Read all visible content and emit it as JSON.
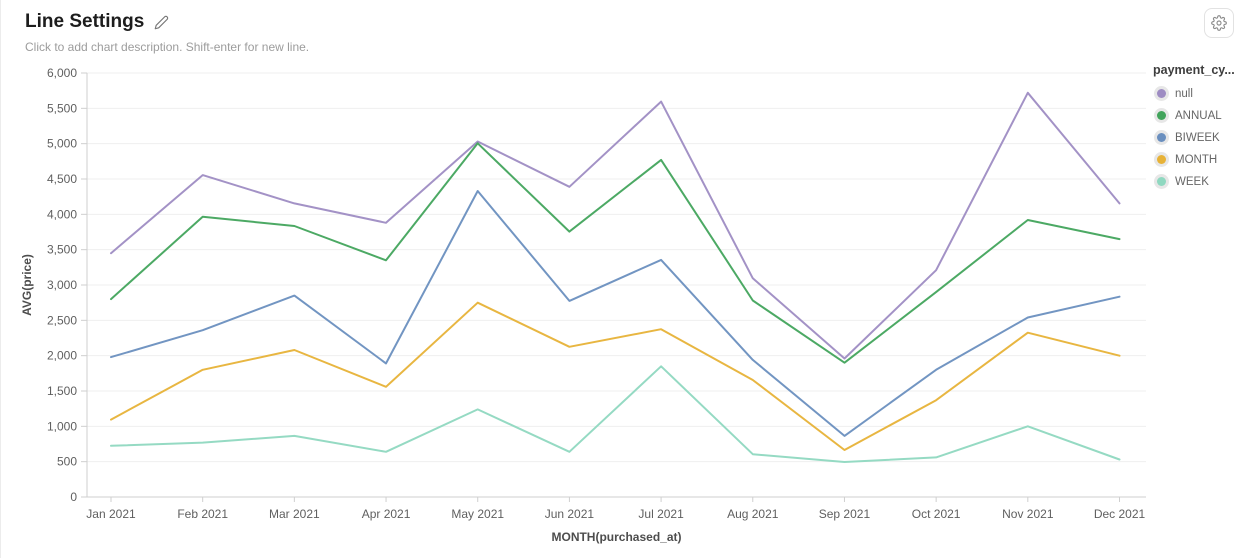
{
  "header": {
    "title": "Line Settings",
    "description_placeholder": "Click to add chart description. Shift-enter for new line."
  },
  "toolbar": {
    "settings_icon": "gear-icon"
  },
  "legend": {
    "title": "payment_cy...",
    "items": [
      {
        "label": "null",
        "color": "#9e8cc3"
      },
      {
        "label": "ANNUAL",
        "color": "#42a45c"
      },
      {
        "label": "BIWEEK",
        "color": "#6a8fbf"
      },
      {
        "label": "MONTH",
        "color": "#e7b237"
      },
      {
        "label": "WEEK",
        "color": "#8fd8c0"
      }
    ]
  },
  "chart_data": {
    "type": "line",
    "title": "",
    "xlabel": "MONTH(purchased_at)",
    "ylabel": "AVG(price)",
    "categories": [
      "Jan 2021",
      "Feb 2021",
      "Mar 2021",
      "Apr 2021",
      "May 2021",
      "Jun 2021",
      "Jul 2021",
      "Aug 2021",
      "Sep 2021",
      "Oct 2021",
      "Nov 2021",
      "Dec 2021"
    ],
    "ylim": [
      0,
      6000
    ],
    "ytick_interval": 500,
    "grid": true,
    "legend_position": "right",
    "series": [
      {
        "name": "null",
        "color": "#9e8cc3",
        "values": [
          3450,
          4555,
          4155,
          3880,
          5030,
          4390,
          5595,
          3095,
          1960,
          3210,
          5720,
          4155
        ]
      },
      {
        "name": "ANNUAL",
        "color": "#42a45c",
        "values": [
          2800,
          3965,
          3835,
          3350,
          5005,
          3755,
          4770,
          2780,
          1900,
          2900,
          3920,
          3650
        ]
      },
      {
        "name": "BIWEEK",
        "color": "#6a8fbf",
        "values": [
          1980,
          2360,
          2850,
          1890,
          4330,
          2775,
          3355,
          1940,
          865,
          1800,
          2540,
          2835
        ]
      },
      {
        "name": "MONTH",
        "color": "#e7b237",
        "values": [
          1095,
          1800,
          2080,
          1560,
          2750,
          2125,
          2375,
          1655,
          665,
          1370,
          2325,
          2000
        ]
      },
      {
        "name": "WEEK",
        "color": "#8fd8c0",
        "values": [
          725,
          770,
          865,
          640,
          1240,
          640,
          1850,
          605,
          495,
          560,
          1000,
          530
        ]
      }
    ]
  }
}
